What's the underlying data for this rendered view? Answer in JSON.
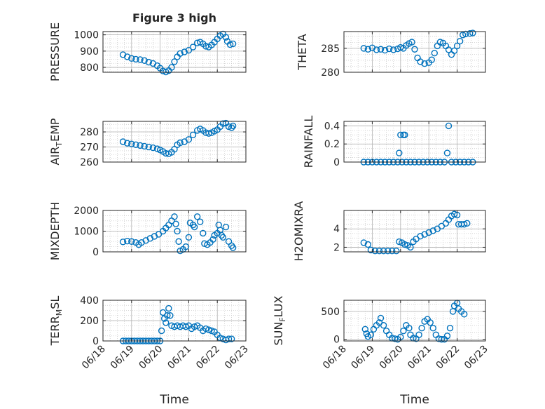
{
  "figure": {
    "title": "Figure 3 high"
  },
  "colors": {
    "marker": "#0072bd",
    "axis": "#262626",
    "grid": "#b0b0b0",
    "minor_grid": "#cccccc"
  },
  "x_axis": {
    "type": "time",
    "range": [
      "06/18",
      "06/23"
    ],
    "ticks": [
      {
        "value": 0,
        "label": "06/18"
      },
      {
        "value": 1,
        "label": "06/19"
      },
      {
        "value": 2,
        "label": "06/20"
      },
      {
        "value": 3,
        "label": "06/21"
      },
      {
        "value": 4,
        "label": "06/22"
      },
      {
        "value": 5,
        "label": "06/23"
      }
    ],
    "label": "Time"
  },
  "chart_data": [
    {
      "type": "scatter",
      "title": "Figure 3 high",
      "ylabel": "PRESSURE",
      "ylim": [
        770,
        1020
      ],
      "yticks": [
        {
          "v": 800,
          "t": "800"
        },
        {
          "v": 900,
          "t": "900"
        },
        {
          "v": 1000,
          "t": "1000"
        }
      ],
      "points": [
        [
          0.7,
          878
        ],
        [
          0.85,
          865
        ],
        [
          1.0,
          855
        ],
        [
          1.15,
          850
        ],
        [
          1.3,
          848
        ],
        [
          1.45,
          842
        ],
        [
          1.6,
          832
        ],
        [
          1.75,
          824
        ],
        [
          1.9,
          810
        ],
        [
          2.0,
          795
        ],
        [
          2.1,
          778
        ],
        [
          2.2,
          772
        ],
        [
          2.3,
          780
        ],
        [
          2.4,
          800
        ],
        [
          2.5,
          835
        ],
        [
          2.6,
          865
        ],
        [
          2.7,
          885
        ],
        [
          2.85,
          895
        ],
        [
          3.0,
          905
        ],
        [
          3.15,
          925
        ],
        [
          3.3,
          950
        ],
        [
          3.4,
          955
        ],
        [
          3.5,
          945
        ],
        [
          3.6,
          930
        ],
        [
          3.7,
          925
        ],
        [
          3.8,
          938
        ],
        [
          3.9,
          955
        ],
        [
          4.0,
          975
        ],
        [
          4.1,
          995
        ],
        [
          4.2,
          1005
        ],
        [
          4.3,
          985
        ],
        [
          4.35,
          960
        ],
        [
          4.45,
          940
        ],
        [
          4.55,
          945
        ]
      ]
    },
    {
      "type": "scatter",
      "title": "",
      "ylabel": "THETA",
      "ylim": [
        280,
        288.5
      ],
      "yticks": [
        {
          "v": 280,
          "t": "280"
        },
        {
          "v": 285,
          "t": "285"
        }
      ],
      "points": [
        [
          0.7,
          285.0
        ],
        [
          0.85,
          284.8
        ],
        [
          1.0,
          285.1
        ],
        [
          1.15,
          284.7
        ],
        [
          1.3,
          284.8
        ],
        [
          1.45,
          284.6
        ],
        [
          1.6,
          284.9
        ],
        [
          1.75,
          284.7
        ],
        [
          1.9,
          284.9
        ],
        [
          2.0,
          285.2
        ],
        [
          2.1,
          285.0
        ],
        [
          2.2,
          285.6
        ],
        [
          2.3,
          286.0
        ],
        [
          2.4,
          286.3
        ],
        [
          2.5,
          284.8
        ],
        [
          2.6,
          283.0
        ],
        [
          2.7,
          282.2
        ],
        [
          2.85,
          281.8
        ],
        [
          3.0,
          282.0
        ],
        [
          3.1,
          282.6
        ],
        [
          3.2,
          284.0
        ],
        [
          3.3,
          285.5
        ],
        [
          3.4,
          286.3
        ],
        [
          3.5,
          286.1
        ],
        [
          3.6,
          285.5
        ],
        [
          3.7,
          284.7
        ],
        [
          3.8,
          283.7
        ],
        [
          3.9,
          284.5
        ],
        [
          4.0,
          285.5
        ],
        [
          4.1,
          286.5
        ],
        [
          4.2,
          287.8
        ],
        [
          4.3,
          288.0
        ],
        [
          4.45,
          288.1
        ],
        [
          4.55,
          288.2
        ]
      ]
    },
    {
      "type": "scatter",
      "title": "",
      "ylabel": "AIR_TEMP",
      "ylim": [
        260,
        287
      ],
      "yticks": [
        {
          "v": 260,
          "t": "260"
        },
        {
          "v": 270,
          "t": "270"
        },
        {
          "v": 280,
          "t": "280"
        }
      ],
      "points": [
        [
          0.7,
          273.5
        ],
        [
          0.85,
          272.5
        ],
        [
          1.0,
          272.0
        ],
        [
          1.15,
          271.5
        ],
        [
          1.3,
          271.0
        ],
        [
          1.45,
          270.5
        ],
        [
          1.6,
          270.0
        ],
        [
          1.75,
          269.5
        ],
        [
          1.9,
          268.8
        ],
        [
          2.0,
          268.0
        ],
        [
          2.1,
          267.0
        ],
        [
          2.2,
          265.8
        ],
        [
          2.3,
          265.5
        ],
        [
          2.4,
          266.5
        ],
        [
          2.5,
          268.5
        ],
        [
          2.6,
          271.5
        ],
        [
          2.7,
          272.8
        ],
        [
          2.85,
          273.5
        ],
        [
          3.0,
          275.0
        ],
        [
          3.15,
          278.0
        ],
        [
          3.3,
          281.0
        ],
        [
          3.4,
          282.0
        ],
        [
          3.5,
          281.0
        ],
        [
          3.6,
          279.5
        ],
        [
          3.7,
          279.0
        ],
        [
          3.8,
          279.5
        ],
        [
          3.9,
          280.5
        ],
        [
          4.0,
          281.5
        ],
        [
          4.1,
          283.5
        ],
        [
          4.2,
          285.5
        ],
        [
          4.3,
          285.8
        ],
        [
          4.4,
          283.5
        ],
        [
          4.5,
          282.8
        ],
        [
          4.55,
          284.0
        ]
      ]
    },
    {
      "type": "scatter",
      "title": "",
      "ylabel": "RAINFALL",
      "ylim": [
        0,
        0.45
      ],
      "yticks": [
        {
          "v": 0,
          "t": "0"
        },
        {
          "v": 0.2,
          "t": "0.2"
        },
        {
          "v": 0.4,
          "t": "0.4"
        }
      ],
      "points": [
        [
          0.7,
          0
        ],
        [
          0.85,
          0
        ],
        [
          1.0,
          0
        ],
        [
          1.15,
          0
        ],
        [
          1.3,
          0
        ],
        [
          1.45,
          0
        ],
        [
          1.6,
          0
        ],
        [
          1.75,
          0
        ],
        [
          1.9,
          0
        ],
        [
          1.95,
          0.1
        ],
        [
          2.0,
          0.3
        ],
        [
          2.05,
          0
        ],
        [
          2.1,
          0.3
        ],
        [
          2.15,
          0.3
        ],
        [
          2.2,
          0
        ],
        [
          2.35,
          0
        ],
        [
          2.5,
          0
        ],
        [
          2.65,
          0
        ],
        [
          2.8,
          0
        ],
        [
          2.95,
          0
        ],
        [
          3.1,
          0
        ],
        [
          3.25,
          0
        ],
        [
          3.4,
          0
        ],
        [
          3.55,
          0
        ],
        [
          3.65,
          0.1
        ],
        [
          3.7,
          0.4
        ],
        [
          3.8,
          0
        ],
        [
          3.95,
          0
        ],
        [
          4.1,
          0
        ],
        [
          4.25,
          0
        ],
        [
          4.4,
          0
        ],
        [
          4.55,
          0
        ]
      ]
    },
    {
      "type": "scatter",
      "title": "",
      "ylabel": "MIXDEPTH",
      "ylim": [
        0,
        2000
      ],
      "yticks": [
        {
          "v": 0,
          "t": "0"
        },
        {
          "v": 1000,
          "t": "1000"
        },
        {
          "v": 2000,
          "t": "2000"
        }
      ],
      "points": [
        [
          0.7,
          480
        ],
        [
          0.85,
          520
        ],
        [
          1.0,
          500
        ],
        [
          1.15,
          450
        ],
        [
          1.25,
          350
        ],
        [
          1.35,
          450
        ],
        [
          1.5,
          550
        ],
        [
          1.65,
          650
        ],
        [
          1.8,
          750
        ],
        [
          1.95,
          850
        ],
        [
          2.1,
          1000
        ],
        [
          2.2,
          1150
        ],
        [
          2.3,
          1300
        ],
        [
          2.4,
          1500
        ],
        [
          2.5,
          1700
        ],
        [
          2.55,
          1350
        ],
        [
          2.6,
          1000
        ],
        [
          2.65,
          500
        ],
        [
          2.7,
          50
        ],
        [
          2.8,
          120
        ],
        [
          2.9,
          250
        ],
        [
          3.0,
          700
        ],
        [
          3.05,
          1400
        ],
        [
          3.15,
          1300
        ],
        [
          3.2,
          1200
        ],
        [
          3.3,
          1700
        ],
        [
          3.4,
          1450
        ],
        [
          3.5,
          900
        ],
        [
          3.55,
          400
        ],
        [
          3.65,
          350
        ],
        [
          3.75,
          450
        ],
        [
          3.85,
          600
        ],
        [
          3.9,
          800
        ],
        [
          4.0,
          900
        ],
        [
          4.05,
          1300
        ],
        [
          4.1,
          1050
        ],
        [
          4.15,
          800
        ],
        [
          4.2,
          700
        ],
        [
          4.3,
          1200
        ],
        [
          4.4,
          500
        ],
        [
          4.5,
          300
        ],
        [
          4.55,
          200
        ]
      ]
    },
    {
      "type": "scatter",
      "title": "",
      "ylabel": "H2OMIXRA",
      "ylim": [
        1.5,
        6
      ],
      "yticks": [
        {
          "v": 2,
          "t": "2"
        },
        {
          "v": 4,
          "t": "4"
        }
      ],
      "points": [
        [
          0.7,
          2.5
        ],
        [
          0.85,
          2.3
        ],
        [
          0.95,
          1.7
        ],
        [
          1.1,
          1.6
        ],
        [
          1.25,
          1.6
        ],
        [
          1.4,
          1.6
        ],
        [
          1.55,
          1.6
        ],
        [
          1.7,
          1.6
        ],
        [
          1.85,
          1.6
        ],
        [
          1.95,
          2.6
        ],
        [
          2.05,
          2.5
        ],
        [
          2.15,
          2.3
        ],
        [
          2.25,
          2.2
        ],
        [
          2.35,
          2.0
        ],
        [
          2.45,
          2.6
        ],
        [
          2.55,
          2.9
        ],
        [
          2.7,
          3.2
        ],
        [
          2.85,
          3.4
        ],
        [
          3.0,
          3.6
        ],
        [
          3.15,
          3.8
        ],
        [
          3.3,
          4.0
        ],
        [
          3.45,
          4.3
        ],
        [
          3.6,
          4.6
        ],
        [
          3.7,
          5.0
        ],
        [
          3.8,
          5.4
        ],
        [
          3.9,
          5.6
        ],
        [
          4.0,
          5.5
        ],
        [
          4.05,
          4.5
        ],
        [
          4.15,
          4.5
        ],
        [
          4.25,
          4.5
        ],
        [
          4.35,
          4.6
        ]
      ]
    },
    {
      "type": "scatter",
      "title": "",
      "ylabel": "TERR_MSL",
      "ylim": [
        0,
        400
      ],
      "yticks": [
        {
          "v": 0,
          "t": "0"
        },
        {
          "v": 200,
          "t": "200"
        },
        {
          "v": 400,
          "t": "400"
        }
      ],
      "points": [
        [
          0.7,
          0
        ],
        [
          0.8,
          0
        ],
        [
          0.9,
          0
        ],
        [
          1.0,
          0
        ],
        [
          1.1,
          0
        ],
        [
          1.2,
          0
        ],
        [
          1.3,
          0
        ],
        [
          1.4,
          0
        ],
        [
          1.5,
          0
        ],
        [
          1.6,
          0
        ],
        [
          1.7,
          0
        ],
        [
          1.8,
          0
        ],
        [
          1.9,
          0
        ],
        [
          2.0,
          0
        ],
        [
          2.05,
          100
        ],
        [
          2.1,
          280
        ],
        [
          2.15,
          220
        ],
        [
          2.2,
          180
        ],
        [
          2.25,
          250
        ],
        [
          2.3,
          320
        ],
        [
          2.35,
          250
        ],
        [
          2.4,
          150
        ],
        [
          2.5,
          140
        ],
        [
          2.6,
          150
        ],
        [
          2.7,
          140
        ],
        [
          2.8,
          150
        ],
        [
          2.9,
          140
        ],
        [
          3.0,
          150
        ],
        [
          3.1,
          120
        ],
        [
          3.2,
          140
        ],
        [
          3.3,
          150
        ],
        [
          3.4,
          130
        ],
        [
          3.5,
          100
        ],
        [
          3.6,
          120
        ],
        [
          3.7,
          110
        ],
        [
          3.8,
          100
        ],
        [
          3.9,
          90
        ],
        [
          4.0,
          60
        ],
        [
          4.1,
          30
        ],
        [
          4.2,
          20
        ],
        [
          4.3,
          10
        ],
        [
          4.4,
          20
        ],
        [
          4.5,
          20
        ]
      ]
    },
    {
      "type": "scatter",
      "title": "",
      "ylabel": "SUN_FLUX",
      "ylim": [
        -30,
        700
      ],
      "yticks": [
        {
          "v": 0,
          "t": "0"
        },
        {
          "v": 500,
          "t": "500"
        }
      ],
      "points": [
        [
          0.75,
          180
        ],
        [
          0.8,
          100
        ],
        [
          0.85,
          50
        ],
        [
          0.95,
          80
        ],
        [
          1.05,
          180
        ],
        [
          1.15,
          250
        ],
        [
          1.25,
          300
        ],
        [
          1.3,
          380
        ],
        [
          1.4,
          250
        ],
        [
          1.5,
          150
        ],
        [
          1.6,
          80
        ],
        [
          1.7,
          20
        ],
        [
          1.8,
          10
        ],
        [
          1.9,
          0
        ],
        [
          2.0,
          40
        ],
        [
          2.1,
          150
        ],
        [
          2.2,
          250
        ],
        [
          2.3,
          200
        ],
        [
          2.35,
          80
        ],
        [
          2.45,
          20
        ],
        [
          2.55,
          10
        ],
        [
          2.65,
          80
        ],
        [
          2.75,
          200
        ],
        [
          2.85,
          320
        ],
        [
          2.95,
          360
        ],
        [
          3.05,
          300
        ],
        [
          3.15,
          200
        ],
        [
          3.25,
          80
        ],
        [
          3.35,
          10
        ],
        [
          3.45,
          0
        ],
        [
          3.55,
          0
        ],
        [
          3.65,
          60
        ],
        [
          3.75,
          200
        ],
        [
          3.85,
          500
        ],
        [
          3.9,
          600
        ],
        [
          4.0,
          650
        ],
        [
          4.05,
          550
        ],
        [
          4.15,
          500
        ],
        [
          4.25,
          450
        ]
      ]
    }
  ]
}
